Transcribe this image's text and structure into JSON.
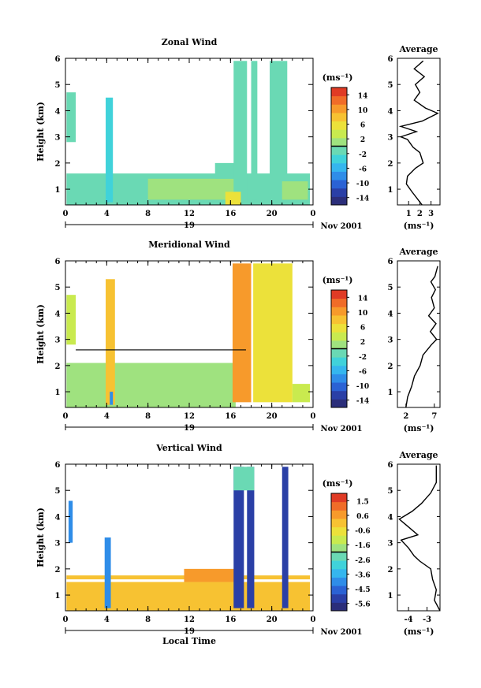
{
  "chart_data": [
    {
      "type": "heatmap",
      "title": "Zonal Wind",
      "ylabel": "Height (km)",
      "xlabel": "",
      "ylim": [
        0.4,
        6
      ],
      "xlim": [
        0,
        24
      ],
      "x_ticks": [
        "0",
        "4",
        "8",
        "12",
        "16",
        "20",
        "0"
      ],
      "y_ticks": [
        "1",
        "2",
        "3",
        "4",
        "5",
        "6"
      ],
      "date_label": "19",
      "month_label": "Nov 2001",
      "colorbar": {
        "label": "(ms⁻¹)",
        "ticks": [
          "14",
          "10",
          "6",
          "2",
          "-2",
          "-6",
          "-10",
          "-14"
        ],
        "min": -16,
        "max": 16
      },
      "blocks": [
        {
          "x0": 0.1,
          "x1": 1.0,
          "y0": 2.8,
          "y1": 4.7,
          "v": -1
        },
        {
          "x0": 0.1,
          "x1": 23.7,
          "y0": 0.4,
          "y1": 1.6,
          "v": -1
        },
        {
          "x0": 3.9,
          "x1": 4.6,
          "y0": 0.5,
          "y1": 4.5,
          "v": -3
        },
        {
          "x0": 8.0,
          "x1": 16.5,
          "y0": 0.6,
          "y1": 1.4,
          "v": 2
        },
        {
          "x0": 14.5,
          "x1": 17.5,
          "y0": 1.4,
          "y1": 2.0,
          "v": -1
        },
        {
          "x0": 16.3,
          "x1": 17.6,
          "y0": 0.4,
          "y1": 5.9,
          "v": -1
        },
        {
          "x0": 18.0,
          "x1": 18.6,
          "y0": 0.6,
          "y1": 5.9,
          "v": -1
        },
        {
          "x0": 19.8,
          "x1": 21.5,
          "y0": 0.5,
          "y1": 5.9,
          "v": -1
        },
        {
          "x0": 15.5,
          "x1": 17.0,
          "y0": 0.4,
          "y1": 0.9,
          "v": 5
        },
        {
          "x0": 21.0,
          "x1": 23.5,
          "y0": 0.6,
          "y1": 1.3,
          "v": 0
        }
      ],
      "profile": {
        "title": "Average",
        "xlabel": "(ms⁻¹)",
        "x_ticks": [
          "1",
          "2",
          "3"
        ],
        "xlim": [
          0,
          3.8
        ],
        "points": [
          [
            2.2,
            0.4
          ],
          [
            1.3,
            0.9
          ],
          [
            0.8,
            1.2
          ],
          [
            0.9,
            1.5
          ],
          [
            1.6,
            1.8
          ],
          [
            2.3,
            2.0
          ],
          [
            2.0,
            2.4
          ],
          [
            1.4,
            2.6
          ],
          [
            0.9,
            2.9
          ],
          [
            0.3,
            3.0
          ],
          [
            1.7,
            3.2
          ],
          [
            0.3,
            3.4
          ],
          [
            2.2,
            3.6
          ],
          [
            3.6,
            3.9
          ],
          [
            2.5,
            4.1
          ],
          [
            1.5,
            4.4
          ],
          [
            2.0,
            4.7
          ],
          [
            1.6,
            5.0
          ],
          [
            2.4,
            5.3
          ],
          [
            1.5,
            5.6
          ],
          [
            2.3,
            5.9
          ]
        ]
      }
    },
    {
      "type": "heatmap",
      "title": "Meridional Wind",
      "ylabel": "Height (km)",
      "xlabel": "",
      "ylim": [
        0.4,
        6
      ],
      "xlim": [
        0,
        24
      ],
      "x_ticks": [
        "0",
        "4",
        "8",
        "12",
        "16",
        "20",
        "0"
      ],
      "y_ticks": [
        "1",
        "2",
        "3",
        "4",
        "5",
        "6"
      ],
      "date_label": "19",
      "month_label": "Nov 2001",
      "colorbar": {
        "label": "(ms⁻¹)",
        "ticks": [
          "14",
          "10",
          "6",
          "2",
          "-2",
          "-6",
          "-10",
          "-14"
        ],
        "min": -16,
        "max": 16
      },
      "blocks": [
        {
          "x0": 0.1,
          "x1": 1.0,
          "y0": 2.8,
          "y1": 4.7,
          "v": 3
        },
        {
          "x0": 0.1,
          "x1": 16.5,
          "y0": 0.4,
          "y1": 2.1,
          "v": 0
        },
        {
          "x0": 3.9,
          "x1": 4.8,
          "y0": 0.5,
          "y1": 5.3,
          "v": 8
        },
        {
          "x0": 4.3,
          "x1": 4.6,
          "y0": 0.5,
          "y1": 1.0,
          "v": -8
        },
        {
          "x0": 16.2,
          "x1": 18.0,
          "y0": 0.6,
          "y1": 5.9,
          "v": 10
        },
        {
          "x0": 18.2,
          "x1": 22.0,
          "y0": 0.6,
          "y1": 5.9,
          "v": 6
        },
        {
          "x0": 22.0,
          "x1": 23.7,
          "y0": 0.6,
          "y1": 1.3,
          "v": 4
        }
      ],
      "hline": {
        "x0": 1.0,
        "x1": 17.5,
        "y": 2.6
      },
      "profile": {
        "title": "Average",
        "xlabel": "(ms⁻¹)",
        "x_ticks": [
          "2",
          "7"
        ],
        "xlim": [
          0.5,
          8
        ],
        "points": [
          [
            2.0,
            0.4
          ],
          [
            2.3,
            0.8
          ],
          [
            3.0,
            1.2
          ],
          [
            3.5,
            1.6
          ],
          [
            4.5,
            2.0
          ],
          [
            5.0,
            2.4
          ],
          [
            6.5,
            2.8
          ],
          [
            7.4,
            3.0
          ],
          [
            6.3,
            3.3
          ],
          [
            7.3,
            3.6
          ],
          [
            6.0,
            3.9
          ],
          [
            7.0,
            4.2
          ],
          [
            6.5,
            4.6
          ],
          [
            7.2,
            4.9
          ],
          [
            6.4,
            5.2
          ],
          [
            7.1,
            5.4
          ],
          [
            7.6,
            5.8
          ]
        ]
      }
    },
    {
      "type": "heatmap",
      "title": "Vertical Wind",
      "ylabel": "Height (km)",
      "xlabel": "Local Time",
      "ylim": [
        0.4,
        6
      ],
      "xlim": [
        0,
        24
      ],
      "x_ticks": [
        "0",
        "4",
        "8",
        "12",
        "16",
        "20",
        "0"
      ],
      "y_ticks": [
        "1",
        "2",
        "3",
        "4",
        "5",
        "6"
      ],
      "date_label": "19",
      "month_label": "Nov 2001",
      "colorbar": {
        "label": "(ms⁻¹)",
        "ticks": [
          "1.5",
          "0.6",
          "-0.6",
          "-1.6",
          "-2.6",
          "-3.6",
          "-4.5",
          "-5.6"
        ],
        "min": -6.1,
        "max": 2.0
      },
      "blocks": [
        {
          "x0": 0.1,
          "x1": 23.7,
          "y0": 0.4,
          "y1": 1.5,
          "v": 0.2
        },
        {
          "x0": 0.1,
          "x1": 23.7,
          "y0": 1.6,
          "y1": 1.75,
          "v": 0.2
        },
        {
          "x0": 11.5,
          "x1": 16.5,
          "y0": 1.5,
          "y1": 2.0,
          "v": 0.3
        },
        {
          "x0": 0.3,
          "x1": 0.7,
          "y0": 3.0,
          "y1": 4.6,
          "v": -4.0
        },
        {
          "x0": 3.8,
          "x1": 4.4,
          "y0": 0.5,
          "y1": 3.2,
          "v": -4.2
        },
        {
          "x0": 16.3,
          "x1": 17.3,
          "y0": 0.5,
          "y1": 5.9,
          "v": -5.5
        },
        {
          "x0": 17.6,
          "x1": 18.3,
          "y0": 0.5,
          "y1": 5.9,
          "v": -5.0
        },
        {
          "x0": 21.0,
          "x1": 21.6,
          "y0": 0.5,
          "y1": 5.9,
          "v": -5.2
        },
        {
          "x0": 16.3,
          "x1": 18.3,
          "y0": 5.0,
          "y1": 5.9,
          "v": -2.3
        }
      ],
      "profile": {
        "title": "Average",
        "xlabel": "(ms⁻¹)",
        "x_ticks": [
          "-4",
          "-3"
        ],
        "xlim": [
          -4.6,
          -2.3
        ],
        "points": [
          [
            -2.3,
            0.4
          ],
          [
            -2.6,
            0.8
          ],
          [
            -2.5,
            1.2
          ],
          [
            -2.7,
            1.6
          ],
          [
            -2.8,
            2.0
          ],
          [
            -3.4,
            2.3
          ],
          [
            -3.7,
            2.5
          ],
          [
            -4.0,
            2.8
          ],
          [
            -4.4,
            3.1
          ],
          [
            -3.5,
            3.3
          ],
          [
            -4.0,
            3.6
          ],
          [
            -4.5,
            3.9
          ],
          [
            -3.8,
            4.2
          ],
          [
            -3.3,
            4.5
          ],
          [
            -2.8,
            4.9
          ],
          [
            -2.5,
            5.3
          ],
          [
            -2.5,
            5.7
          ],
          [
            -2.5,
            5.95
          ]
        ]
      }
    }
  ]
}
